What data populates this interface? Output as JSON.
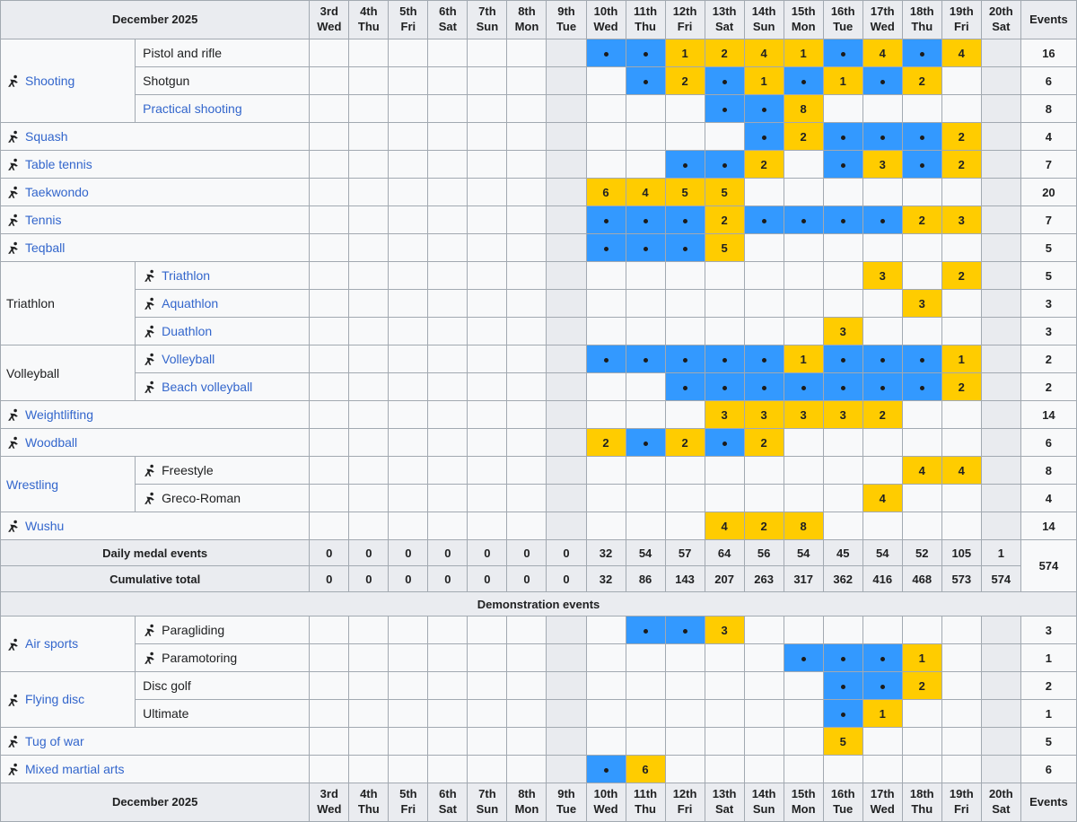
{
  "page": {
    "title": "December 2025",
    "events_label": "Events",
    "daily_label": "Daily medal events",
    "cumulative_label": "Cumulative total",
    "section_demo_label": "Demonstration events",
    "total_events": "574"
  },
  "colors": {
    "competition_day": "#3399FF",
    "medal_event_day": "#FFCC00",
    "header_bg": "#EAECF0",
    "row_bg": "#F8F9FA",
    "shaded_day_bg": "#E9EBEF",
    "border": "#A2A9B1",
    "link": "#3366CC",
    "text": "#202122"
  },
  "columns": [
    {
      "day": "3rd",
      "weekday": "Wed"
    },
    {
      "day": "4th",
      "weekday": "Thu"
    },
    {
      "day": "5th",
      "weekday": "Fri"
    },
    {
      "day": "6th",
      "weekday": "Sat"
    },
    {
      "day": "7th",
      "weekday": "Sun"
    },
    {
      "day": "8th",
      "weekday": "Mon"
    },
    {
      "day": "9th",
      "weekday": "Tue"
    },
    {
      "day": "10th",
      "weekday": "Wed"
    },
    {
      "day": "11th",
      "weekday": "Thu"
    },
    {
      "day": "12th",
      "weekday": "Fri"
    },
    {
      "day": "13th",
      "weekday": "Sat"
    },
    {
      "day": "14th",
      "weekday": "Sun"
    },
    {
      "day": "15th",
      "weekday": "Mon"
    },
    {
      "day": "16th",
      "weekday": "Tue"
    },
    {
      "day": "17th",
      "weekday": "Wed"
    },
    {
      "day": "18th",
      "weekday": "Thu"
    },
    {
      "day": "19th",
      "weekday": "Fri"
    },
    {
      "day": "20th",
      "weekday": "Sat"
    }
  ],
  "shaded_column_indexes": [
    6,
    17
  ],
  "rows": [
    {
      "kind": "sport",
      "label": {
        "text": "Shooting",
        "link": true,
        "icon": "shooting",
        "rowspan": 3
      },
      "sub": {
        "text": "Pistol and rifle",
        "link": false
      },
      "days": [
        "",
        "",
        "",
        "",
        "",
        "",
        "",
        "●",
        "●",
        "1",
        "2",
        "4",
        "1",
        "●",
        "4",
        "●",
        "4",
        ""
      ],
      "events": "16"
    },
    {
      "kind": "sport",
      "sub": {
        "text": "Shotgun",
        "link": false
      },
      "days": [
        "",
        "",
        "",
        "",
        "",
        "",
        "",
        "",
        "●",
        "2",
        "●",
        "1",
        "●",
        "1",
        "●",
        "2",
        "",
        ""
      ],
      "events": "6"
    },
    {
      "kind": "sport",
      "sub": {
        "text": "Practical shooting",
        "link": true
      },
      "days": [
        "",
        "",
        "",
        "",
        "",
        "",
        "",
        "",
        "",
        "",
        "●",
        "●",
        "8",
        "",
        "",
        "",
        "",
        ""
      ],
      "events": "8"
    },
    {
      "kind": "sport",
      "label": {
        "text": "Squash",
        "link": true,
        "icon": "squash",
        "colspan": 2
      },
      "days": [
        "",
        "",
        "",
        "",
        "",
        "",
        "",
        "",
        "",
        "",
        "",
        "●",
        "2",
        "●",
        "●",
        "●",
        "2",
        ""
      ],
      "events": "4"
    },
    {
      "kind": "sport",
      "label": {
        "text": "Table tennis",
        "link": true,
        "icon": "table-tennis",
        "colspan": 2
      },
      "days": [
        "",
        "",
        "",
        "",
        "",
        "",
        "",
        "",
        "",
        "●",
        "●",
        "2",
        "",
        "●",
        "3",
        "●",
        "2",
        ""
      ],
      "events": "7"
    },
    {
      "kind": "sport",
      "label": {
        "text": "Taekwondo",
        "link": true,
        "icon": "taekwondo",
        "colspan": 2
      },
      "days": [
        "",
        "",
        "",
        "",
        "",
        "",
        "",
        "6",
        "4",
        "5",
        "5",
        "",
        "",
        "",
        "",
        "",
        "",
        ""
      ],
      "events": "20"
    },
    {
      "kind": "sport",
      "label": {
        "text": "Tennis",
        "link": true,
        "icon": "tennis",
        "colspan": 2
      },
      "days": [
        "",
        "",
        "",
        "",
        "",
        "",
        "",
        "●",
        "●",
        "●",
        "2",
        "●",
        "●",
        "●",
        "●",
        "2",
        "3",
        ""
      ],
      "events": "7"
    },
    {
      "kind": "sport",
      "label": {
        "text": "Teqball",
        "link": true,
        "icon": "teqball",
        "colspan": 2
      },
      "days": [
        "",
        "",
        "",
        "",
        "",
        "",
        "",
        "●",
        "●",
        "●",
        "5",
        "",
        "",
        "",
        "",
        "",
        "",
        ""
      ],
      "events": "5"
    },
    {
      "kind": "sport",
      "label": {
        "text": "Triathlon",
        "link": false,
        "rowspan": 3
      },
      "sub": {
        "text": "Triathlon",
        "link": true,
        "icon": "triathlon"
      },
      "days": [
        "",
        "",
        "",
        "",
        "",
        "",
        "",
        "",
        "",
        "",
        "",
        "",
        "",
        "",
        "3",
        "",
        "2",
        ""
      ],
      "events": "5"
    },
    {
      "kind": "sport",
      "sub": {
        "text": "Aquathlon",
        "link": true,
        "icon": "aquathlon"
      },
      "days": [
        "",
        "",
        "",
        "",
        "",
        "",
        "",
        "",
        "",
        "",
        "",
        "",
        "",
        "",
        "",
        "3",
        "",
        ""
      ],
      "events": "3"
    },
    {
      "kind": "sport",
      "sub": {
        "text": "Duathlon",
        "link": true,
        "icon": "duathlon"
      },
      "days": [
        "",
        "",
        "",
        "",
        "",
        "",
        "",
        "",
        "",
        "",
        "",
        "",
        "",
        "3",
        "",
        "",
        "",
        ""
      ],
      "events": "3"
    },
    {
      "kind": "sport",
      "label": {
        "text": "Volleyball",
        "link": false,
        "rowspan": 2
      },
      "sub": {
        "text": "Volleyball",
        "link": true,
        "icon": "volleyball"
      },
      "days": [
        "",
        "",
        "",
        "",
        "",
        "",
        "",
        "●",
        "●",
        "●",
        "●",
        "●",
        "1",
        "●",
        "●",
        "●",
        "1",
        ""
      ],
      "events": "2"
    },
    {
      "kind": "sport",
      "sub": {
        "text": "Beach volleyball",
        "link": true,
        "icon": "beach-volleyball"
      },
      "days": [
        "",
        "",
        "",
        "",
        "",
        "",
        "",
        "",
        "",
        "●",
        "●",
        "●",
        "●",
        "●",
        "●",
        "●",
        "2",
        ""
      ],
      "events": "2"
    },
    {
      "kind": "sport",
      "label": {
        "text": "Weightlifting",
        "link": true,
        "icon": "weightlifting",
        "colspan": 2
      },
      "days": [
        "",
        "",
        "",
        "",
        "",
        "",
        "",
        "",
        "",
        "",
        "3",
        "3",
        "3",
        "3",
        "2",
        "",
        "",
        ""
      ],
      "events": "14"
    },
    {
      "kind": "sport",
      "label": {
        "text": "Woodball",
        "link": true,
        "icon": "woodball",
        "colspan": 2
      },
      "days": [
        "",
        "",
        "",
        "",
        "",
        "",
        "",
        "2",
        "●",
        "2",
        "●",
        "2",
        "",
        "",
        "",
        "",
        "",
        ""
      ],
      "events": "6"
    },
    {
      "kind": "sport",
      "label": {
        "text": "Wrestling",
        "link": true,
        "rowspan": 2
      },
      "sub": {
        "text": "Freestyle",
        "link": false,
        "icon": "freestyle-wrestling"
      },
      "days": [
        "",
        "",
        "",
        "",
        "",
        "",
        "",
        "",
        "",
        "",
        "",
        "",
        "",
        "",
        "",
        "4",
        "4",
        ""
      ],
      "events": "8"
    },
    {
      "kind": "sport",
      "sub": {
        "text": "Greco-Roman",
        "link": false,
        "icon": "greco-roman-wrestling"
      },
      "days": [
        "",
        "",
        "",
        "",
        "",
        "",
        "",
        "",
        "",
        "",
        "",
        "",
        "",
        "",
        "4",
        "",
        "",
        ""
      ],
      "events": "4"
    },
    {
      "kind": "sport",
      "label": {
        "text": "Wushu",
        "link": true,
        "icon": "wushu",
        "colspan": 2
      },
      "days": [
        "",
        "",
        "",
        "",
        "",
        "",
        "",
        "",
        "",
        "",
        "4",
        "2",
        "8",
        "",
        "",
        "",
        "",
        ""
      ],
      "events": "14"
    },
    {
      "kind": "summary",
      "label": "Daily medal events",
      "days": [
        "0",
        "0",
        "0",
        "0",
        "0",
        "0",
        "0",
        "32",
        "54",
        "57",
        "64",
        "56",
        "54",
        "45",
        "54",
        "52",
        "105",
        "1"
      ],
      "events": {
        "text": "574",
        "rowspan": 2
      }
    },
    {
      "kind": "summary",
      "label": "Cumulative total",
      "days": [
        "0",
        "0",
        "0",
        "0",
        "0",
        "0",
        "0",
        "32",
        "86",
        "143",
        "207",
        "263",
        "317",
        "362",
        "416",
        "468",
        "573",
        "574"
      ]
    },
    {
      "kind": "section",
      "label": "Demonstration events"
    },
    {
      "kind": "sport",
      "label": {
        "text": "Air sports",
        "link": true,
        "icon": "air-sports",
        "rowspan": 2
      },
      "sub": {
        "text": "Paragliding",
        "link": false,
        "icon": "paragliding"
      },
      "days": [
        "",
        "",
        "",
        "",
        "",
        "",
        "",
        "",
        "●",
        "●",
        "3",
        "",
        "",
        "",
        "",
        "",
        "",
        ""
      ],
      "events": "3"
    },
    {
      "kind": "sport",
      "sub": {
        "text": "Paramotoring",
        "link": false,
        "icon": "paramotoring"
      },
      "days": [
        "",
        "",
        "",
        "",
        "",
        "",
        "",
        "",
        "",
        "",
        "",
        "",
        "●",
        "●",
        "●",
        "1",
        "",
        ""
      ],
      "events": "1"
    },
    {
      "kind": "sport",
      "label": {
        "text": "Flying disc",
        "link": true,
        "icon": "flying-disc",
        "rowspan": 2
      },
      "sub": {
        "text": "Disc golf",
        "link": false
      },
      "days": [
        "",
        "",
        "",
        "",
        "",
        "",
        "",
        "",
        "",
        "",
        "",
        "",
        "",
        "●",
        "●",
        "2",
        "",
        ""
      ],
      "events": "2"
    },
    {
      "kind": "sport",
      "sub": {
        "text": "Ultimate",
        "link": false
      },
      "days": [
        "",
        "",
        "",
        "",
        "",
        "",
        "",
        "",
        "",
        "",
        "",
        "",
        "",
        "●",
        "1",
        "",
        "",
        ""
      ],
      "events": "1"
    },
    {
      "kind": "sport",
      "label": {
        "text": "Tug of war",
        "link": true,
        "icon": "tug-of-war",
        "colspan": 2
      },
      "days": [
        "",
        "",
        "",
        "",
        "",
        "",
        "",
        "",
        "",
        "",
        "",
        "",
        "",
        "5",
        "",
        "",
        "",
        ""
      ],
      "events": "5"
    },
    {
      "kind": "sport",
      "label": {
        "text": "Mixed martial arts",
        "link": true,
        "icon": "mixed-martial-arts",
        "colspan": 2
      },
      "days": [
        "",
        "",
        "",
        "",
        "",
        "",
        "",
        "●",
        "6",
        "",
        "",
        "",
        "",
        "",
        "",
        "",
        "",
        ""
      ],
      "events": "6"
    }
  ]
}
